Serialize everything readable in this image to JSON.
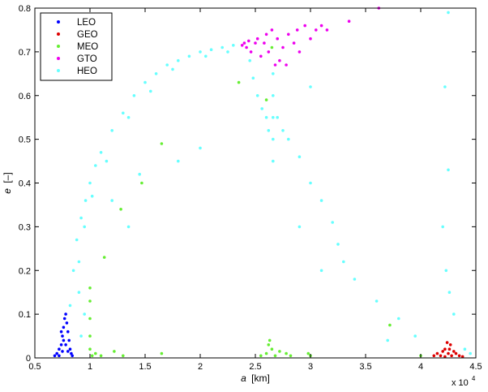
{
  "chart_data": {
    "type": "scatter",
    "title": "",
    "xlabel_symbol": "a",
    "xlabel_unit": "[km]",
    "ylabel_symbol": "e",
    "ylabel_unit": "[–]",
    "x_multiplier_base": "x 10",
    "x_multiplier_exp": "4",
    "xlim": [
      0.5,
      4.5
    ],
    "ylim": [
      0,
      0.8
    ],
    "x_ticks": [
      0.5,
      1,
      1.5,
      2,
      2.5,
      3,
      3.5,
      4,
      4.5
    ],
    "x_tick_labels": [
      "0.5",
      "1",
      "1.5",
      "2",
      "2.5",
      "3",
      "3.5",
      "4",
      "4.5"
    ],
    "y_ticks": [
      0,
      0.1,
      0.2,
      0.3,
      0.4,
      0.5,
      0.6,
      0.7,
      0.8
    ],
    "y_tick_labels": [
      "0",
      "0.1",
      "0.2",
      "0.3",
      "0.4",
      "0.5",
      "0.6",
      "0.7",
      "0.8"
    ],
    "grid": false,
    "legend_position": "top-left",
    "series": [
      {
        "name": "LEO",
        "color": "#0000ff",
        "points": [
          [
            0.68,
            0.005
          ],
          [
            0.7,
            0.01
          ],
          [
            0.72,
            0.02
          ],
          [
            0.74,
            0.03
          ],
          [
            0.75,
            0.05
          ],
          [
            0.76,
            0.07
          ],
          [
            0.77,
            0.09
          ],
          [
            0.78,
            0.1
          ],
          [
            0.79,
            0.08
          ],
          [
            0.8,
            0.06
          ],
          [
            0.81,
            0.04
          ],
          [
            0.82,
            0.02
          ],
          [
            0.83,
            0.01
          ],
          [
            0.84,
            0.005
          ],
          [
            0.72,
            0.005
          ],
          [
            0.75,
            0.015
          ],
          [
            0.78,
            0.03
          ],
          [
            0.8,
            0.015
          ],
          [
            0.76,
            0.04
          ],
          [
            0.74,
            0.06
          ]
        ]
      },
      {
        "name": "GEO",
        "color": "#dd0000",
        "points": [
          [
            4.12,
            0.005
          ],
          [
            4.15,
            0.01
          ],
          [
            4.18,
            0.005
          ],
          [
            4.2,
            0.015
          ],
          [
            4.22,
            0.02
          ],
          [
            4.24,
            0.035
          ],
          [
            4.25,
            0.01
          ],
          [
            4.26,
            0.02
          ],
          [
            4.28,
            0.005
          ],
          [
            4.3,
            0.015
          ],
          [
            4.32,
            0.01
          ],
          [
            4.35,
            0.005
          ],
          [
            4.38,
            0.003
          ],
          [
            4.22,
            0.003
          ],
          [
            4.27,
            0.03
          ]
        ]
      },
      {
        "name": "MEO",
        "color": "#66ee33",
        "points": [
          [
            1.0,
            0.02
          ],
          [
            1.0,
            0.05
          ],
          [
            1.0,
            0.09
          ],
          [
            1.0,
            0.13
          ],
          [
            1.0,
            0.16
          ],
          [
            1.02,
            0.005
          ],
          [
            1.05,
            0.01
          ],
          [
            1.1,
            0.005
          ],
          [
            1.22,
            0.015
          ],
          [
            1.3,
            0.005
          ],
          [
            1.65,
            0.01
          ],
          [
            1.47,
            0.4
          ],
          [
            1.65,
            0.49
          ],
          [
            1.28,
            0.34
          ],
          [
            1.13,
            0.23
          ],
          [
            2.55,
            0.005
          ],
          [
            2.6,
            0.01
          ],
          [
            2.63,
            0.04
          ],
          [
            2.65,
            0.02
          ],
          [
            2.68,
            0.005
          ],
          [
            2.72,
            0.015
          ],
          [
            2.78,
            0.01
          ],
          [
            2.82,
            0.005
          ],
          [
            2.98,
            0.01
          ],
          [
            3.0,
            0.005
          ],
          [
            2.62,
            0.03
          ],
          [
            3.72,
            0.075
          ],
          [
            4.0,
            0.005
          ],
          [
            2.65,
            0.71
          ],
          [
            2.6,
            0.59
          ],
          [
            2.35,
            0.63
          ]
        ]
      },
      {
        "name": "GTO",
        "color": "#ee00ee",
        "points": [
          [
            2.38,
            0.715
          ],
          [
            2.4,
            0.72
          ],
          [
            2.42,
            0.71
          ],
          [
            2.44,
            0.725
          ],
          [
            2.46,
            0.7
          ],
          [
            2.5,
            0.72
          ],
          [
            2.52,
            0.73
          ],
          [
            2.55,
            0.69
          ],
          [
            2.58,
            0.72
          ],
          [
            2.6,
            0.74
          ],
          [
            2.62,
            0.7
          ],
          [
            2.65,
            0.75
          ],
          [
            2.7,
            0.73
          ],
          [
            2.72,
            0.68
          ],
          [
            2.75,
            0.71
          ],
          [
            2.8,
            0.74
          ],
          [
            2.85,
            0.72
          ],
          [
            2.88,
            0.75
          ],
          [
            2.9,
            0.7
          ],
          [
            2.95,
            0.76
          ],
          [
            3.0,
            0.73
          ],
          [
            3.05,
            0.75
          ],
          [
            3.1,
            0.76
          ],
          [
            3.15,
            0.75
          ],
          [
            3.35,
            0.77
          ],
          [
            3.62,
            0.8
          ],
          [
            2.78,
            0.67
          ],
          [
            2.68,
            0.67
          ]
        ]
      },
      {
        "name": "HEO",
        "color": "#66ffff",
        "points": [
          [
            0.82,
            0.12
          ],
          [
            0.85,
            0.2
          ],
          [
            0.88,
            0.27
          ],
          [
            0.92,
            0.32
          ],
          [
            0.96,
            0.36
          ],
          [
            1.0,
            0.4
          ],
          [
            1.05,
            0.44
          ],
          [
            1.1,
            0.47
          ],
          [
            1.2,
            0.52
          ],
          [
            1.3,
            0.56
          ],
          [
            1.4,
            0.6
          ],
          [
            1.5,
            0.63
          ],
          [
            1.6,
            0.65
          ],
          [
            1.7,
            0.67
          ],
          [
            1.8,
            0.68
          ],
          [
            1.9,
            0.69
          ],
          [
            2.0,
            0.7
          ],
          [
            2.1,
            0.705
          ],
          [
            2.2,
            0.71
          ],
          [
            2.3,
            0.715
          ],
          [
            0.9,
            0.22
          ],
          [
            0.95,
            0.3
          ],
          [
            1.02,
            0.37
          ],
          [
            1.15,
            0.45
          ],
          [
            1.35,
            0.55
          ],
          [
            1.55,
            0.61
          ],
          [
            1.75,
            0.66
          ],
          [
            2.05,
            0.69
          ],
          [
            2.25,
            0.7
          ],
          [
            2.45,
            0.68
          ],
          [
            2.48,
            0.64
          ],
          [
            2.52,
            0.6
          ],
          [
            2.56,
            0.57
          ],
          [
            2.6,
            0.55
          ],
          [
            2.62,
            0.52
          ],
          [
            2.66,
            0.65
          ],
          [
            2.66,
            0.6
          ],
          [
            2.66,
            0.55
          ],
          [
            2.66,
            0.5
          ],
          [
            2.66,
            0.45
          ],
          [
            2.7,
            0.55
          ],
          [
            2.75,
            0.52
          ],
          [
            2.8,
            0.5
          ],
          [
            2.9,
            0.46
          ],
          [
            3.0,
            0.4
          ],
          [
            3.1,
            0.36
          ],
          [
            3.2,
            0.31
          ],
          [
            3.25,
            0.26
          ],
          [
            3.3,
            0.22
          ],
          [
            3.4,
            0.18
          ],
          [
            3.6,
            0.13
          ],
          [
            3.8,
            0.09
          ],
          [
            3.95,
            0.05
          ],
          [
            4.25,
            0.79
          ],
          [
            4.22,
            0.62
          ],
          [
            4.25,
            0.43
          ],
          [
            4.23,
            0.2
          ],
          [
            4.26,
            0.15
          ],
          [
            4.3,
            0.1
          ],
          [
            4.2,
            0.3
          ],
          [
            1.2,
            0.36
          ],
          [
            1.45,
            0.42
          ],
          [
            1.35,
            0.3
          ],
          [
            0.95,
            0.1
          ],
          [
            0.92,
            0.05
          ],
          [
            0.9,
            0.15
          ],
          [
            1.8,
            0.45
          ],
          [
            2.0,
            0.48
          ],
          [
            3.0,
            0.62
          ],
          [
            4.45,
            0.01
          ],
          [
            4.4,
            0.02
          ],
          [
            3.7,
            0.04
          ],
          [
            2.9,
            0.3
          ],
          [
            3.1,
            0.2
          ]
        ]
      }
    ]
  }
}
